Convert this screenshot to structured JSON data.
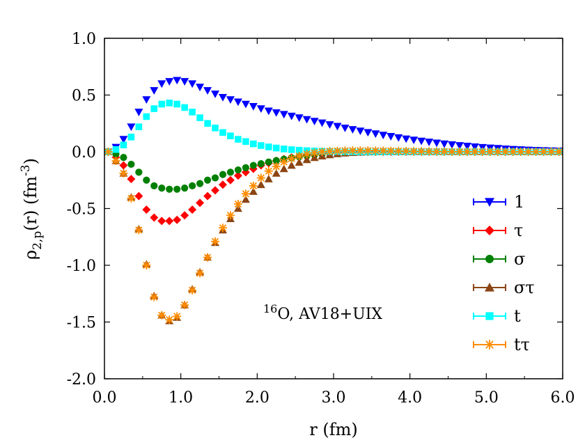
{
  "chart_data": {
    "type": "scatter",
    "xlabel": "r (fm)",
    "ylabel_main": "ρ",
    "ylabel_sub": "2,p",
    "ylabel_rest": "(r) (fm",
    "ylabel_sup": "-3",
    "ylabel_close": ")",
    "xlim": [
      0,
      6
    ],
    "ylim": [
      -2,
      1
    ],
    "x_ticks": [
      0,
      1,
      2,
      3,
      4,
      5,
      6
    ],
    "x_tick_labels": [
      "0.0",
      "1.0",
      "2.0",
      "3.0",
      "4.0",
      "5.0",
      "6.0"
    ],
    "y_ticks": [
      1,
      0.5,
      0,
      -0.5,
      -1,
      -1.5,
      -2
    ],
    "y_tick_labels": [
      "1.0",
      "0.5",
      "0.0",
      "-0.5",
      "-1.0",
      "-1.5",
      "-2.0"
    ],
    "annotation": {
      "sup": "16",
      "text": "O, AV18+UIX"
    },
    "legend_position": "right",
    "x": [
      0.05,
      0.15,
      0.25,
      0.35,
      0.45,
      0.55,
      0.65,
      0.75,
      0.85,
      0.95,
      1.05,
      1.15,
      1.25,
      1.35,
      1.45,
      1.55,
      1.65,
      1.75,
      1.85,
      1.95,
      2.05,
      2.15,
      2.25,
      2.35,
      2.45,
      2.55,
      2.65,
      2.75,
      2.85,
      2.95,
      3.05,
      3.15,
      3.25,
      3.35,
      3.45,
      3.55,
      3.65,
      3.75,
      3.85,
      3.95,
      4.05,
      4.15,
      4.25,
      4.35,
      4.45,
      4.55,
      4.65,
      4.75,
      4.85,
      4.95,
      5.05,
      5.15,
      5.25,
      5.35,
      5.45,
      5.55,
      5.65,
      5.75,
      5.85,
      5.95
    ],
    "series": [
      {
        "name": "1",
        "color": "#0000ff",
        "marker": "triangle-down",
        "values": [
          0.0,
          0.04,
          0.11,
          0.22,
          0.35,
          0.46,
          0.54,
          0.6,
          0.62,
          0.63,
          0.62,
          0.6,
          0.57,
          0.54,
          0.51,
          0.48,
          0.46,
          0.44,
          0.42,
          0.4,
          0.38,
          0.36,
          0.345,
          0.33,
          0.315,
          0.3,
          0.285,
          0.27,
          0.255,
          0.24,
          0.225,
          0.21,
          0.197,
          0.184,
          0.171,
          0.159,
          0.147,
          0.136,
          0.125,
          0.114,
          0.104,
          0.095,
          0.086,
          0.078,
          0.07,
          0.063,
          0.056,
          0.05,
          0.044,
          0.039,
          0.034,
          0.03,
          0.026,
          0.022,
          0.019,
          0.016,
          0.013,
          0.011,
          0.009,
          0.007
        ]
      },
      {
        "name": "τ",
        "color": "#ff0000",
        "marker": "diamond",
        "values": [
          0.0,
          -0.05,
          -0.12,
          -0.24,
          -0.39,
          -0.51,
          -0.58,
          -0.61,
          -0.61,
          -0.6,
          -0.56,
          -0.51,
          -0.45,
          -0.39,
          -0.34,
          -0.29,
          -0.25,
          -0.21,
          -0.18,
          -0.15,
          -0.12,
          -0.1,
          -0.08,
          -0.064,
          -0.05,
          -0.038,
          -0.028,
          -0.02,
          -0.014,
          -0.01,
          -0.006,
          -0.004,
          -0.002,
          -0.001,
          0.0,
          0.0,
          0.0,
          0.0,
          0.0,
          0.0,
          0.0,
          0.0,
          0.0,
          0.0,
          0.0,
          0.0,
          0.0,
          0.0,
          0.0,
          0.0,
          0.0,
          0.0,
          0.0,
          0.0,
          0.0,
          0.0,
          0.0,
          0.0,
          0.0,
          0.0
        ]
      },
      {
        "name": "σ",
        "color": "#008000",
        "marker": "circle",
        "values": [
          0.0,
          -0.02,
          -0.05,
          -0.11,
          -0.18,
          -0.25,
          -0.3,
          -0.32,
          -0.33,
          -0.33,
          -0.32,
          -0.3,
          -0.28,
          -0.25,
          -0.23,
          -0.2,
          -0.18,
          -0.16,
          -0.14,
          -0.12,
          -0.105,
          -0.09,
          -0.077,
          -0.065,
          -0.054,
          -0.044,
          -0.036,
          -0.028,
          -0.022,
          -0.016,
          -0.012,
          -0.008,
          -0.005,
          -0.003,
          -0.002,
          -0.001,
          0.0,
          0.0,
          0.0,
          0.0,
          0.0,
          0.0,
          0.0,
          0.0,
          0.0,
          0.0,
          0.0,
          0.0,
          0.0,
          0.0,
          0.0,
          0.0,
          0.0,
          0.0,
          0.0,
          0.0,
          0.0,
          0.0,
          0.0,
          0.0
        ]
      },
      {
        "name": "στ",
        "color": "#8b4513",
        "marker": "triangle-up",
        "values": [
          0.0,
          -0.08,
          -0.19,
          -0.4,
          -0.68,
          -0.99,
          -1.27,
          -1.44,
          -1.49,
          -1.46,
          -1.35,
          -1.21,
          -1.06,
          -0.93,
          -0.8,
          -0.69,
          -0.59,
          -0.5,
          -0.42,
          -0.35,
          -0.29,
          -0.24,
          -0.19,
          -0.15,
          -0.12,
          -0.093,
          -0.07,
          -0.052,
          -0.038,
          -0.027,
          -0.018,
          -0.012,
          -0.007,
          -0.004,
          -0.002,
          0.0,
          0.0,
          0.0,
          0.0,
          0.0,
          0.0,
          0.0,
          0.0,
          0.0,
          0.0,
          0.0,
          0.0,
          0.0,
          0.0,
          0.0,
          0.0,
          0.0,
          0.0,
          0.0,
          0.0,
          0.0,
          0.0,
          0.0,
          0.0,
          0.0
        ]
      },
      {
        "name": "t",
        "color": "#00ffff",
        "marker": "square",
        "values": [
          0.0,
          0.02,
          0.06,
          0.13,
          0.22,
          0.31,
          0.38,
          0.42,
          0.43,
          0.42,
          0.39,
          0.35,
          0.3,
          0.25,
          0.21,
          0.17,
          0.14,
          0.11,
          0.09,
          0.07,
          0.055,
          0.043,
          0.033,
          0.025,
          0.019,
          0.014,
          0.01,
          0.007,
          0.005,
          0.003,
          0.002,
          0.001,
          0.0,
          0.0,
          0.0,
          0.0,
          0.0,
          0.0,
          0.0,
          0.0,
          0.0,
          0.0,
          0.0,
          0.0,
          0.0,
          0.0,
          0.0,
          0.0,
          0.0,
          0.0,
          0.0,
          0.0,
          0.0,
          0.0,
          0.0,
          0.0,
          0.0,
          0.0,
          0.0,
          0.0
        ]
      },
      {
        "name": "tτ",
        "color": "#ff8c00",
        "marker": "asterisk",
        "values": [
          0.0,
          -0.08,
          -0.19,
          -0.41,
          -0.69,
          -1.0,
          -1.28,
          -1.44,
          -1.48,
          -1.45,
          -1.35,
          -1.22,
          -1.07,
          -0.93,
          -0.79,
          -0.67,
          -0.56,
          -0.46,
          -0.37,
          -0.3,
          -0.23,
          -0.17,
          -0.13,
          -0.09,
          -0.06,
          -0.037,
          -0.02,
          -0.008,
          0.0,
          0.005,
          0.008,
          0.01,
          0.011,
          0.011,
          0.011,
          0.01,
          0.009,
          0.008,
          0.007,
          0.006,
          0.005,
          0.004,
          0.003,
          0.002,
          0.002,
          0.001,
          0.001,
          0.0,
          0.0,
          0.0,
          0.0,
          0.0,
          0.0,
          0.0,
          0.0,
          0.0,
          0.0,
          0.0,
          0.0,
          0.0
        ]
      }
    ]
  }
}
